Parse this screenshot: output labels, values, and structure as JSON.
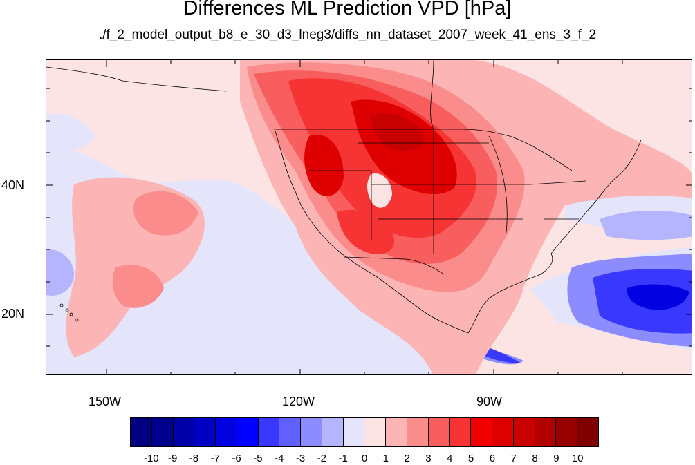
{
  "title": "Differences ML Prediction VPD [hPa]",
  "subtitle": "./f_2_model_output_b8_e_30_d3_lneg3/diffs_nn_dataset_2007_week_41_ens_3_f_2",
  "axes": {
    "lon_labels": [
      "150W",
      "120W",
      "90W"
    ],
    "lat_labels": [
      "40N",
      "20N"
    ]
  },
  "colorbar": {
    "labels": [
      "-10",
      "-9",
      "-8",
      "-7",
      "-6",
      "-5",
      "-4",
      "-3",
      "-2",
      "-1",
      "0",
      "1",
      "2",
      "3",
      "4",
      "5",
      "6",
      "7",
      "8",
      "9",
      "10"
    ],
    "colors": [
      "#000080",
      "#00008f",
      "#0000a8",
      "#0000c4",
      "#0000e0",
      "#0000ff",
      "#3838ff",
      "#6060ff",
      "#8c8cff",
      "#b4b4ff",
      "#e4e4fa",
      "#fde4e4",
      "#fcb4b4",
      "#fb8c8c",
      "#f85e5e",
      "#f63434",
      "#f20000",
      "#de0000",
      "#c80000",
      "#b00000",
      "#960000",
      "#7e0000"
    ]
  },
  "map": {
    "colors": {
      "background": "#fde4e4",
      "light_blue": "#e4e4fa",
      "blue1": "#b4b4ff",
      "blue2": "#8c8cff",
      "blue3": "#3838ff",
      "blue4": "#0000e0",
      "pink1": "#fcb4b4",
      "pink2": "#fb8c8c",
      "red1": "#f85e5e",
      "red2": "#f63434",
      "red3": "#de0000",
      "red4": "#c80000",
      "outline": "#000000"
    }
  }
}
